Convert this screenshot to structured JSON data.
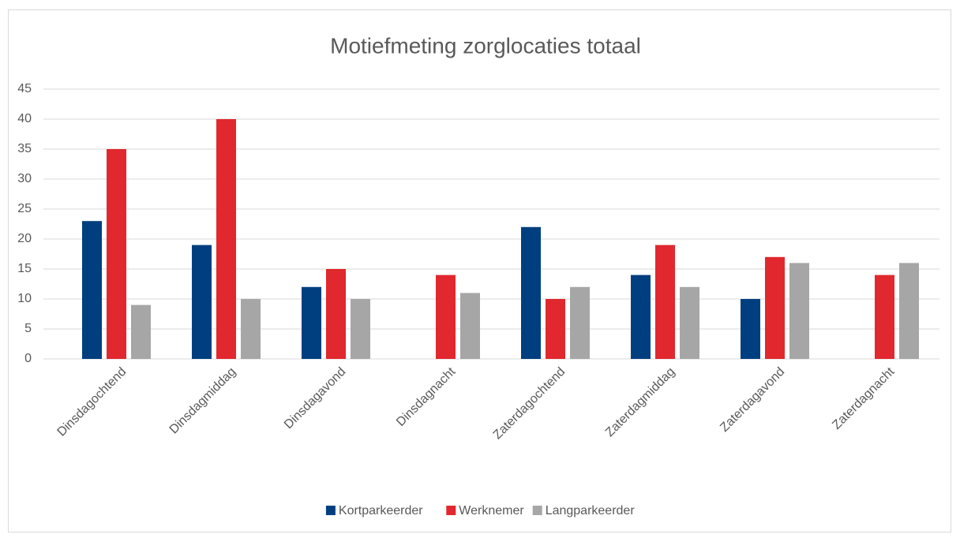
{
  "chart_data": {
    "type": "bar",
    "title": "Motiefmeting zorglocaties totaal",
    "categories": [
      "Dinsdagochtend",
      "Dinsdagmiddag",
      "Dinsdagavond",
      "Dinsdagnacht",
      "Zaterdagochtend",
      "Zaterdagmiddag",
      "Zaterdagavond",
      "Zaterdagnacht"
    ],
    "series": [
      {
        "name": "Kortparkeerder",
        "color": "#003f7f",
        "values": [
          23,
          19,
          12,
          0,
          22,
          14,
          10,
          0
        ]
      },
      {
        "name": "Werknemer",
        "color": "#e0282e",
        "values": [
          35,
          40,
          15,
          14,
          10,
          19,
          17,
          14
        ]
      },
      {
        "name": "Langparkeerder",
        "color": "#a6a6a6",
        "values": [
          9,
          10,
          10,
          11,
          12,
          12,
          16,
          16
        ]
      }
    ],
    "ylim": [
      0,
      45
    ],
    "yticks": [
      0,
      5,
      10,
      15,
      20,
      25,
      30,
      35,
      40,
      45
    ],
    "grid": true,
    "legend": "bottom"
  }
}
